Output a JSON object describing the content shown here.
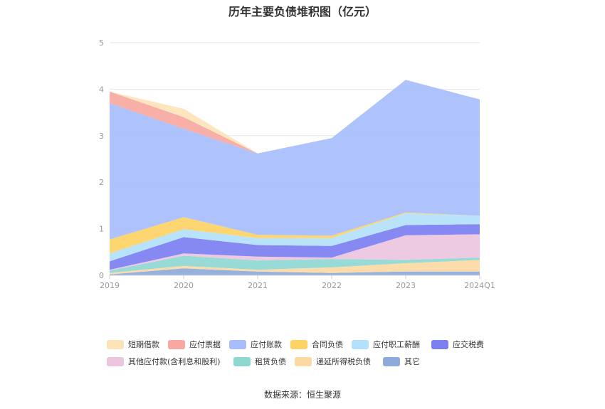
{
  "chart_data": {
    "type": "area",
    "stacked": true,
    "title": "历年主要负债堆积图（亿元）",
    "source": "数据来源：恒生聚源",
    "categories": [
      "2019",
      "2020",
      "2021",
      "2022",
      "2023",
      "2024Q1"
    ],
    "ylim": [
      0,
      5
    ],
    "yticks": [
      "0",
      "1",
      "2",
      "3",
      "4",
      "5"
    ],
    "grid": true,
    "legend_position": "bottom",
    "series": [
      {
        "name": "其它",
        "color": "#8eaadb",
        "values": [
          0.02,
          0.15,
          0.08,
          0.05,
          0.08,
          0.08
        ]
      },
      {
        "name": "递延所得税负债",
        "color": "#fcd9a3",
        "values": [
          0.03,
          0.05,
          0.04,
          0.12,
          0.18,
          0.25
        ]
      },
      {
        "name": "租赁负债",
        "color": "#8fd8d2",
        "values": [
          0.05,
          0.22,
          0.2,
          0.18,
          0.07,
          0.05
        ]
      },
      {
        "name": "其他应付款(含利息和股利)",
        "color": "#ecc6df",
        "values": [
          0.02,
          0.05,
          0.08,
          0.03,
          0.53,
          0.5
        ]
      },
      {
        "name": "应交税费",
        "color": "#7b7ff0",
        "values": [
          0.18,
          0.35,
          0.25,
          0.25,
          0.22,
          0.22
        ]
      },
      {
        "name": "应付职工薪酬",
        "color": "#b3e1fb",
        "values": [
          0.17,
          0.17,
          0.15,
          0.17,
          0.25,
          0.18
        ]
      },
      {
        "name": "合同负债",
        "color": "#fdd365",
        "values": [
          0.3,
          0.26,
          0.07,
          0.05,
          0.02,
          0.0
        ]
      },
      {
        "name": "应付账款",
        "color": "#a7bdfc",
        "values": [
          2.93,
          1.9,
          1.75,
          2.1,
          2.85,
          2.5
        ]
      },
      {
        "name": "应付票据",
        "color": "#f7a8a0",
        "values": [
          0.25,
          0.25,
          0.0,
          0.0,
          0.0,
          0.0
        ]
      },
      {
        "name": "短期借款",
        "color": "#fde3b8",
        "values": [
          0.0,
          0.18,
          0.0,
          0.0,
          0.0,
          0.0
        ]
      }
    ],
    "legend_order": [
      [
        "短期借款",
        "应付票据",
        "应付账款",
        "合同负债",
        "应付职工薪酬",
        "应交税费"
      ],
      [
        "其他应付款(含利息和股利)",
        "租赁负债",
        "递延所得税负债",
        "其它"
      ]
    ]
  }
}
